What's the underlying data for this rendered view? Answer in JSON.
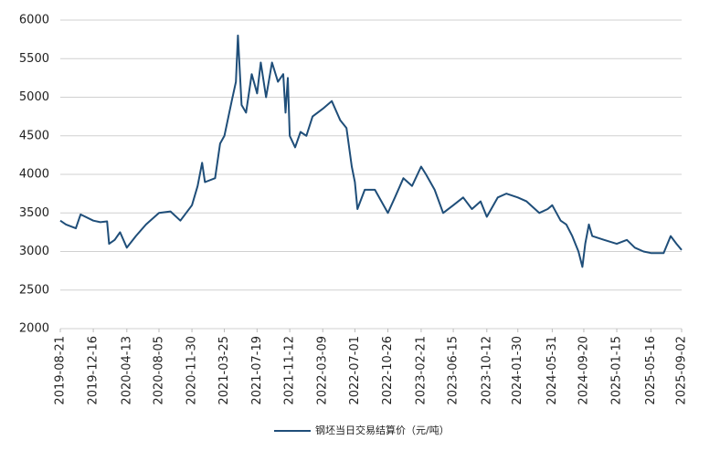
{
  "chart_data": {
    "type": "line",
    "x": [
      "2019-08-21",
      "2019-09-10",
      "2019-10-15",
      "2019-11-01",
      "2019-12-16",
      "2020-01-10",
      "2020-02-03",
      "2020-02-10",
      "2020-03-01",
      "2020-03-20",
      "2020-04-13",
      "2020-05-15",
      "2020-06-20",
      "2020-08-05",
      "2020-09-15",
      "2020-10-20",
      "2020-11-30",
      "2020-12-20",
      "2021-01-05",
      "2021-01-15",
      "2021-02-20",
      "2021-03-10",
      "2021-03-25",
      "2021-04-20",
      "2021-05-05",
      "2021-05-12",
      "2021-05-25",
      "2021-06-10",
      "2021-06-30",
      "2021-07-19",
      "2021-08-01",
      "2021-08-20",
      "2021-09-10",
      "2021-10-01",
      "2021-10-20",
      "2021-10-28",
      "2021-11-05",
      "2021-11-12",
      "2021-12-01",
      "2021-12-20",
      "2022-01-10",
      "2022-02-01",
      "2022-03-09",
      "2022-04-10",
      "2022-05-10",
      "2022-06-01",
      "2022-06-20",
      "2022-07-01",
      "2022-07-10",
      "2022-08-05",
      "2022-09-10",
      "2022-10-26",
      "2022-11-20",
      "2022-12-20",
      "2023-01-20",
      "2023-02-21",
      "2023-03-10",
      "2023-04-10",
      "2023-05-10",
      "2023-06-15",
      "2023-07-20",
      "2023-08-20",
      "2023-09-20",
      "2023-10-12",
      "2023-11-20",
      "2023-12-20",
      "2024-01-30",
      "2024-03-01",
      "2024-04-15",
      "2024-05-15",
      "2024-05-31",
      "2024-06-30",
      "2024-07-20",
      "2024-08-10",
      "2024-09-01",
      "2024-09-15",
      "2024-09-25",
      "2024-10-08",
      "2024-10-20",
      "2024-12-01",
      "2025-01-15",
      "2025-02-20",
      "2025-03-20",
      "2025-04-20",
      "2025-05-16",
      "2025-06-30",
      "2025-07-25",
      "2025-08-15",
      "2025-09-02"
    ],
    "series": [
      {
        "name": "钢坯当日交易结算价（元/吨）",
        "color": "#1f4e79",
        "values": [
          3400,
          3350,
          3300,
          3480,
          3400,
          3380,
          3390,
          3100,
          3150,
          3250,
          3050,
          3200,
          3350,
          3500,
          3520,
          3400,
          3600,
          3850,
          4150,
          3900,
          3950,
          4400,
          4500,
          4950,
          5200,
          5800,
          4900,
          4800,
          5300,
          5050,
          5450,
          5000,
          5450,
          5200,
          5300,
          4800,
          5250,
          4500,
          4350,
          4550,
          4500,
          4750,
          4850,
          4950,
          4700,
          4600,
          4100,
          3900,
          3550,
          3800,
          3800,
          3500,
          3700,
          3950,
          3850,
          4100,
          4000,
          3800,
          3500,
          3600,
          3700,
          3550,
          3650,
          3450,
          3700,
          3750,
          3700,
          3650,
          3500,
          3550,
          3600,
          3400,
          3350,
          3200,
          3000,
          2800,
          3100,
          3350,
          3200,
          3150,
          3100,
          3150,
          3050,
          3000,
          2980,
          2980,
          3200,
          3100,
          3020
        ]
      }
    ],
    "xlim": [
      "2019-08-21",
      "2025-09-02"
    ],
    "xticks": [
      "2019-08-21",
      "2019-12-16",
      "2020-04-13",
      "2020-08-05",
      "2020-11-30",
      "2021-03-25",
      "2021-07-19",
      "2021-11-12",
      "2022-03-09",
      "2022-07-01",
      "2022-10-26",
      "2023-02-21",
      "2023-06-15",
      "2023-10-12",
      "2024-01-30",
      "2024-05-31",
      "2024-09-20",
      "2025-01-15",
      "2025-05-16",
      "2025-09-02"
    ],
    "ylim": [
      2000,
      6000
    ],
    "yticks": [
      2000,
      2500,
      3000,
      3500,
      4000,
      4500,
      5000,
      5500,
      6000
    ],
    "grid": true,
    "legend": "bottom"
  }
}
